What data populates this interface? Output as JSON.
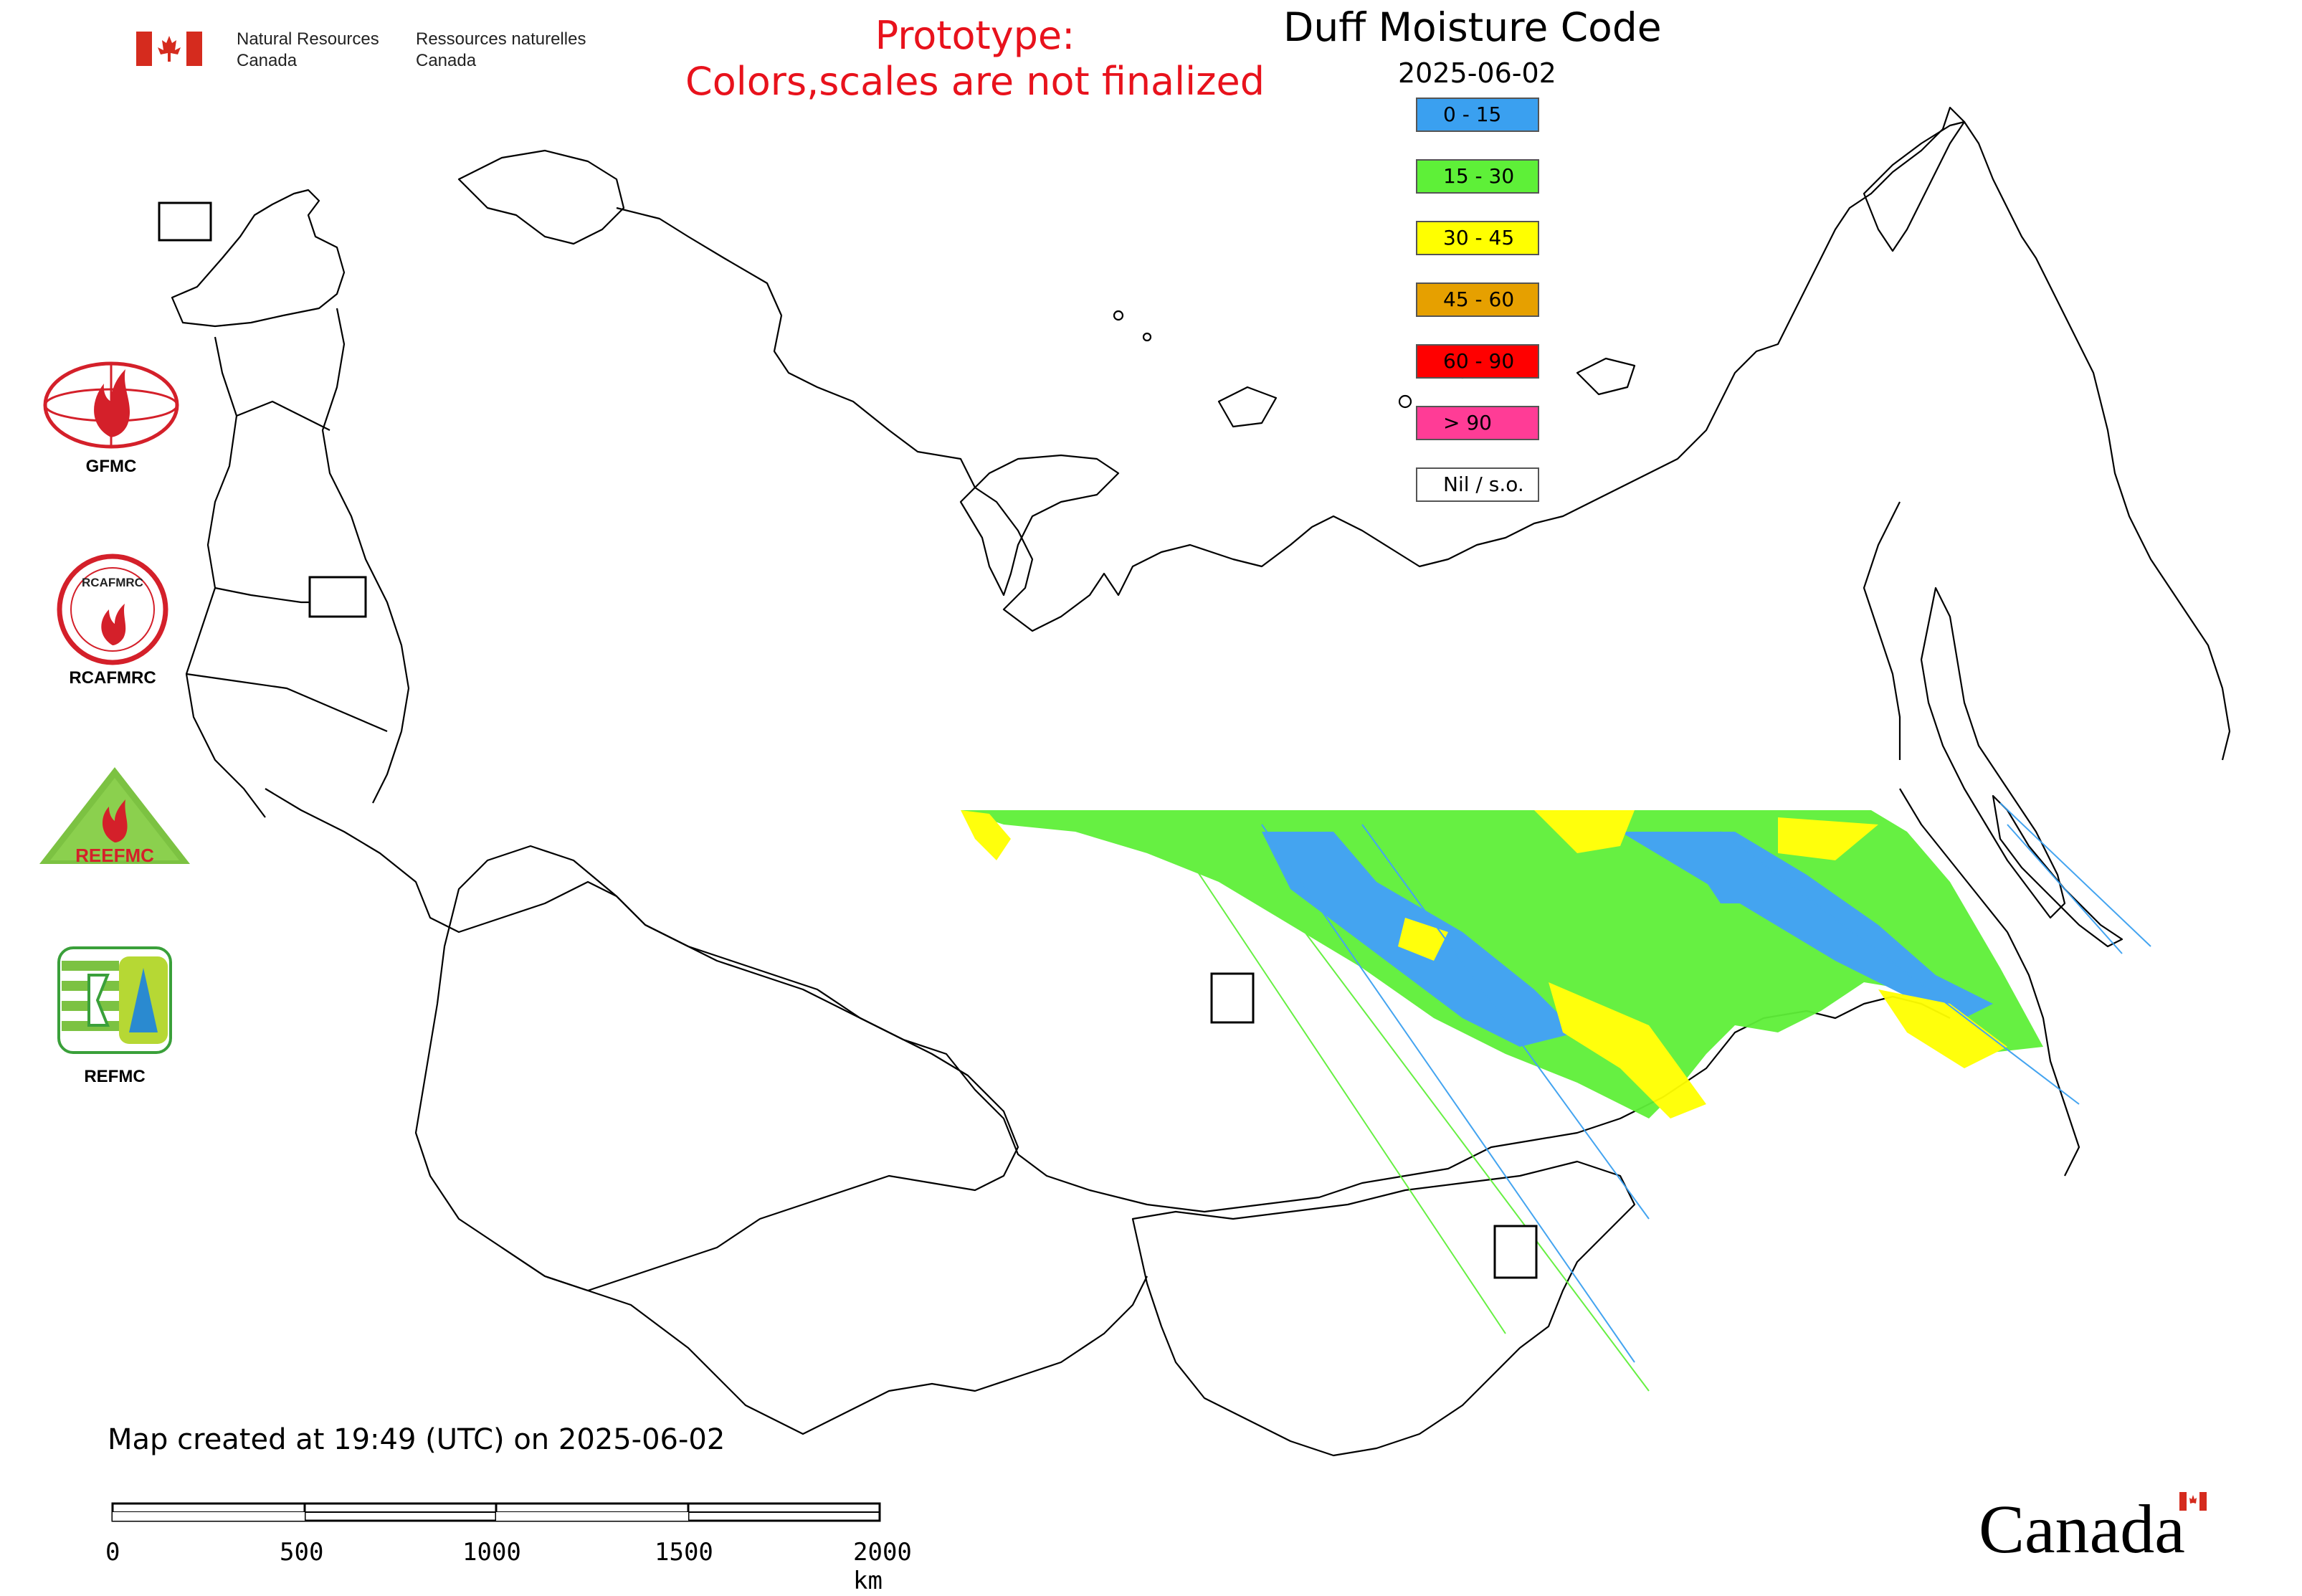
{
  "header": {
    "gov_en_line1": "Natural Resources",
    "gov_en_line2": "Canada",
    "gov_fr_line1": "Ressources naturelles",
    "gov_fr_line2": "Canada",
    "prototype_line1": "Prototype:",
    "prototype_line2": "Colors,scales are not finalized"
  },
  "map": {
    "title": "Duff Moisture Code",
    "date": "2025-06-02",
    "created_note": "Map created at 19:49 (UTC) on 2025-06-02",
    "colors": {
      "land_outline": "#000000",
      "background": "#ffffff",
      "prototype_text": "#e8121c"
    }
  },
  "legend": [
    {
      "label": "0 - 15",
      "color": "#3aa0f0"
    },
    {
      "label": "15 - 30",
      "color": "#5ef038"
    },
    {
      "label": "30 - 45",
      "color": "#ffff00"
    },
    {
      "label": "45 - 60",
      "color": "#e6a000"
    },
    {
      "label": "60 - 90",
      "color": "#ff0000"
    },
    {
      "label": "> 90",
      "color": "#ff3c96"
    },
    {
      "label": "Nil / s.o.",
      "color": "#ffffff"
    }
  ],
  "logos": {
    "gfmc": "GFMC",
    "rcafmrc": "RCAFMRC",
    "reefmc": "REEFMC",
    "refmc": "REFMC",
    "reefmc_text": "REEFMC",
    "rcafmrc_text": "RCAFMRC"
  },
  "scale_bar": {
    "ticks": [
      "0",
      "500",
      "1000",
      "1500",
      "2000 km"
    ]
  },
  "wordmark": "Canada"
}
